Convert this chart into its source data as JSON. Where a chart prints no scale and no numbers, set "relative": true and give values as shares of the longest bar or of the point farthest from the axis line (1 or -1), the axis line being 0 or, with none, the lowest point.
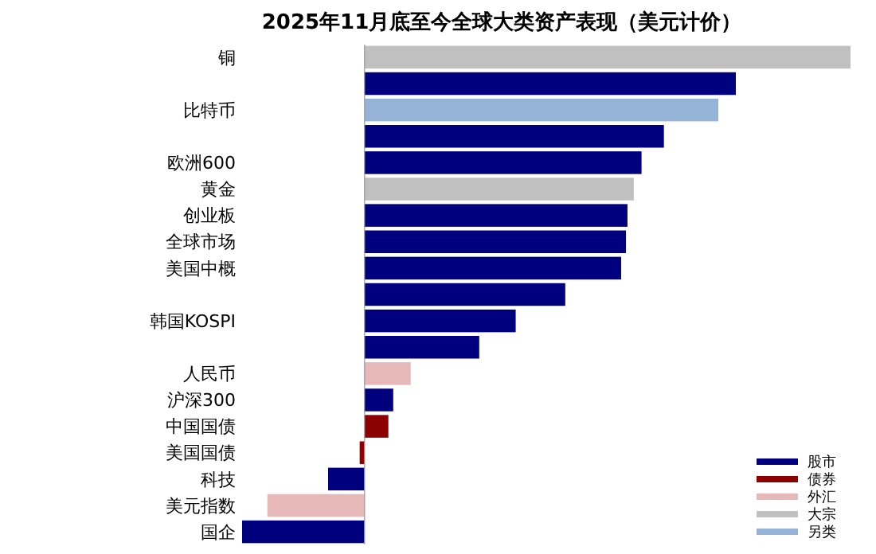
{
  "chart_data": {
    "type": "bar",
    "orientation": "horizontal",
    "relative": true,
    "title": "2025年11月底至今全球大类资产表现（美元计价）",
    "legend": "bottom right",
    "categories": [
      "铜",
      null,
      "比特币",
      null,
      "欧洲600",
      "黄金",
      "创业板",
      "全球市场",
      "美国中概",
      null,
      "韩国KOSPI",
      null,
      "人民币",
      "沪深300",
      "中国国债",
      "美国国债",
      "科技",
      "美元指数",
      "国企"
    ],
    "series": [
      {
        "name": "股市",
        "color": "#00007f",
        "values": [
          null,
          0.764,
          null,
          0.616,
          0.57,
          null,
          0.541,
          0.538,
          0.528,
          0.413,
          0.311,
          0.236,
          null,
          0.059,
          null,
          null,
          -0.075,
          null,
          -0.252
        ]
      },
      {
        "name": "债券",
        "color": "#8b0000",
        "values": [
          null,
          null,
          null,
          null,
          null,
          null,
          null,
          null,
          null,
          null,
          null,
          null,
          null,
          null,
          0.049,
          -0.01,
          null,
          null,
          null
        ]
      },
      {
        "name": "外汇",
        "color": "#e6b8b8",
        "values": [
          null,
          null,
          null,
          null,
          null,
          null,
          null,
          null,
          null,
          null,
          null,
          null,
          0.095,
          null,
          null,
          null,
          null,
          -0.2,
          null
        ]
      },
      {
        "name": "大宗",
        "color": "#c0c0c0",
        "values": [
          1,
          null,
          null,
          null,
          null,
          0.554,
          null,
          null,
          null,
          null,
          null,
          null,
          null,
          null,
          null,
          null,
          null,
          null,
          null
        ]
      },
      {
        "name": "另类",
        "color": "#95b3d7",
        "values": [
          null,
          null,
          0.728,
          null,
          null,
          null,
          null,
          null,
          null,
          null,
          null,
          null,
          null,
          null,
          null,
          null,
          null,
          null,
          null
        ]
      }
    ]
  }
}
